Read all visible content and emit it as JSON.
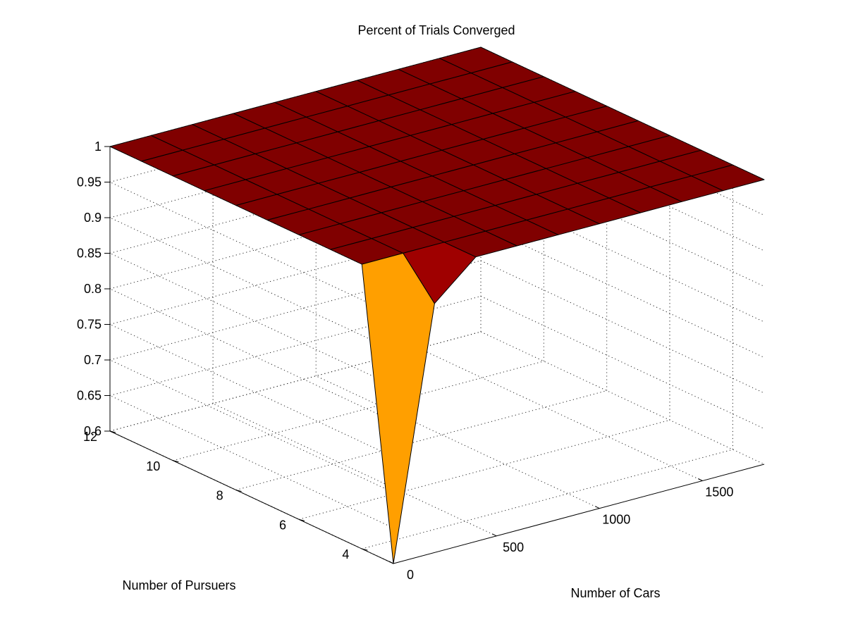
{
  "chart_data": {
    "type": "surface",
    "title": "Percent of Trials Converged",
    "xlabel": "Number of Cars",
    "ylabel": "Number of Pursuers",
    "zlabel": "",
    "x": [
      0,
      200,
      400,
      600,
      800,
      1000,
      1200,
      1400,
      1600,
      1800
    ],
    "y": [
      3,
      4,
      5,
      6,
      7,
      8,
      9,
      10,
      11,
      12
    ],
    "z": [
      [
        0.6,
        0.95,
        1,
        1,
        1,
        1,
        1,
        1,
        1,
        1
      ],
      [
        1,
        1,
        1,
        1,
        1,
        1,
        1,
        1,
        1,
        1
      ],
      [
        1,
        1,
        1,
        1,
        1,
        1,
        1,
        1,
        1,
        1
      ],
      [
        1,
        1,
        1,
        1,
        1,
        1,
        1,
        1,
        1,
        1
      ],
      [
        1,
        1,
        1,
        1,
        1,
        1,
        1,
        1,
        1,
        1
      ],
      [
        1,
        1,
        1,
        1,
        1,
        1,
        1,
        1,
        1,
        1
      ],
      [
        1,
        1,
        1,
        1,
        1,
        1,
        1,
        1,
        1,
        1
      ],
      [
        1,
        1,
        1,
        1,
        1,
        1,
        1,
        1,
        1,
        1
      ],
      [
        1,
        1,
        1,
        1,
        1,
        1,
        1,
        1,
        1,
        1
      ],
      [
        1,
        1,
        1,
        1,
        1,
        1,
        1,
        1,
        1,
        1
      ]
    ],
    "xlim": [
      0,
      1800
    ],
    "ylim": [
      3,
      12
    ],
    "zlim": [
      0.6,
      1
    ],
    "x_ticks": [
      0,
      500,
      1000,
      1500
    ],
    "y_ticks": [
      4,
      6,
      8,
      10,
      12
    ],
    "z_ticks": [
      0.6,
      0.65,
      0.7,
      0.75,
      0.8,
      0.85,
      0.9,
      0.95,
      1
    ],
    "grid": true,
    "colormap": "jet",
    "colors": {
      "high": "#800000",
      "mid": "#80ff80",
      "low": "#000090"
    }
  }
}
